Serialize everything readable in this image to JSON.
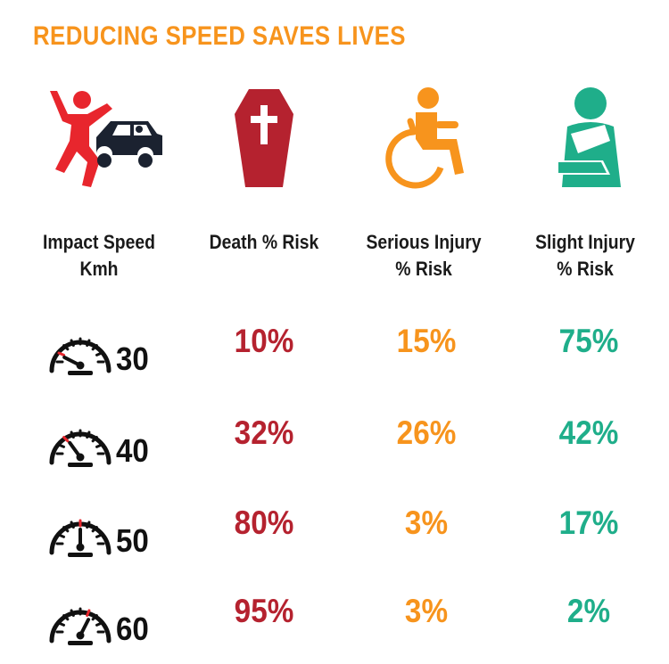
{
  "title": "REDUCING SPEED SAVES LIVES",
  "colors": {
    "title": "#f7941d",
    "death": "#b5222f",
    "serious": "#f7941d",
    "slight": "#1fae8a",
    "pedestrian_red": "#e8262d",
    "car_dark": "#1b2230"
  },
  "icons": {
    "impact": "pedestrian-car-impact-icon",
    "death": "coffin-icon",
    "serious": "wheelchair-icon",
    "slight": "arm-sling-icon",
    "speed": "speedometer-icon"
  },
  "headers": {
    "impact": [
      "Impact Speed",
      "Kmh"
    ],
    "death": [
      "Death % Risk"
    ],
    "serious": [
      "Serious Injury",
      "% Risk"
    ],
    "slight": [
      "Slight Injury",
      "% Risk"
    ]
  },
  "rows": [
    {
      "speed": "30",
      "death": "10%",
      "serious": "15%",
      "slight": "75%",
      "needle_fraction": 0.15
    },
    {
      "speed": "40",
      "death": "32%",
      "serious": "26%",
      "slight": "42%",
      "needle_fraction": 0.3
    },
    {
      "speed": "50",
      "death": "80%",
      "serious": "3%",
      "slight": "17%",
      "needle_fraction": 0.5
    },
    {
      "speed": "60",
      "death": "95%",
      "serious": "3%",
      "slight": "2%",
      "needle_fraction": 0.65
    }
  ]
}
